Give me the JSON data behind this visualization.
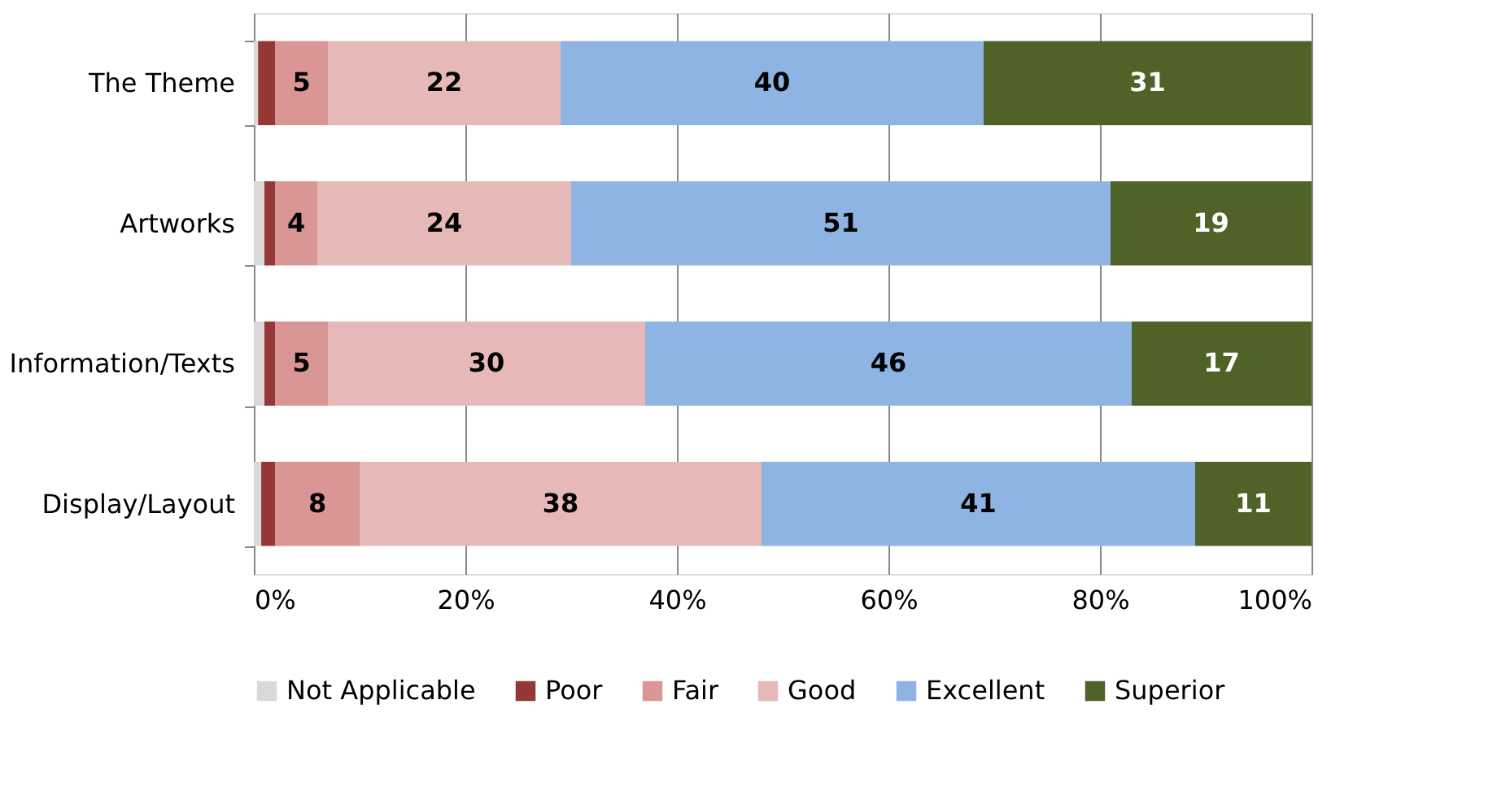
{
  "chart_data": {
    "type": "bar",
    "orientation": "horizontal",
    "stacked": true,
    "categories": [
      "The Theme",
      "Artworks",
      "Information/Texts",
      "Display/Layout"
    ],
    "series": [
      {
        "name": "Not Applicable",
        "color": "#d9d9d9",
        "values": [
          0.4,
          1,
          1,
          0.7
        ]
      },
      {
        "name": "Poor",
        "color": "#953735",
        "values": [
          1.6,
          1,
          1,
          1.3
        ]
      },
      {
        "name": "Fair",
        "color": "#d99694",
        "values": [
          5,
          4,
          5,
          8
        ],
        "value_labels": [
          "5",
          "4",
          "5",
          "8"
        ]
      },
      {
        "name": "Good",
        "color": "#e6b9b8",
        "values": [
          22,
          24,
          30,
          38
        ],
        "value_labels": [
          "22",
          "24",
          "30",
          "38"
        ]
      },
      {
        "name": "Excellent",
        "color": "#8eb4e3",
        "values": [
          40,
          51,
          46,
          41
        ],
        "value_labels": [
          "40",
          "51",
          "46",
          "41"
        ]
      },
      {
        "name": "Superior",
        "color": "#4f6228",
        "values": [
          31,
          19,
          17,
          11
        ],
        "value_labels": [
          "31",
          "19",
          "17",
          "11"
        ]
      }
    ],
    "xlim": [
      0,
      100
    ],
    "xticks": [
      {
        "value": 0,
        "label": "0%"
      },
      {
        "value": 20,
        "label": "20%"
      },
      {
        "value": 40,
        "label": "40%"
      },
      {
        "value": 60,
        "label": "60%"
      },
      {
        "value": 80,
        "label": "80%"
      },
      {
        "value": 100,
        "label": "100%"
      }
    ],
    "grid": "x",
    "legend": "bottom"
  }
}
